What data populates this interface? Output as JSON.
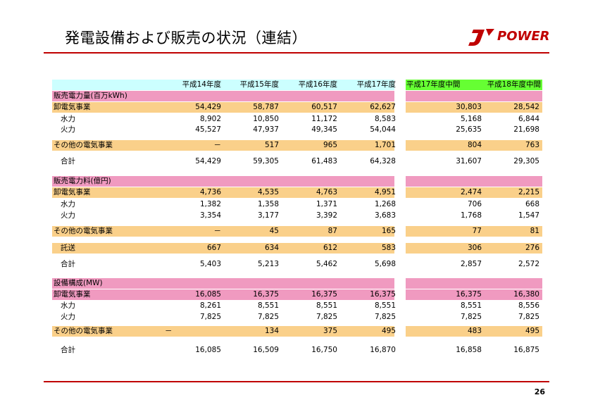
{
  "page": {
    "title": "発電設備および販売の状況（連結）",
    "logo_text": "POWER",
    "page_number": "26",
    "accent_color": "#c00000"
  },
  "header": {
    "columns": [
      "平成14年度",
      "平成15年度",
      "平成16年度",
      "平成17年度",
      "平成17年度中間",
      "平成18年度中間"
    ]
  },
  "sales_volume": {
    "title": "販売電力量(百万kWh)",
    "wholesale": {
      "label": "卸電気事業",
      "values": [
        "54,429",
        "58,787",
        "60,517",
        "62,627",
        "30,803",
        "28,542"
      ]
    },
    "hydro": {
      "label": "水力",
      "values": [
        "8,902",
        "10,850",
        "11,172",
        "8,583",
        "5,168",
        "6,844"
      ]
    },
    "thermal": {
      "label": "火力",
      "values": [
        "45,527",
        "47,937",
        "49,345",
        "54,044",
        "25,635",
        "21,698"
      ]
    },
    "other": {
      "label": "その他の電気事業",
      "values": [
        "－",
        "517",
        "965",
        "1,701",
        "804",
        "763"
      ]
    },
    "total": {
      "label": "合計",
      "values": [
        "54,429",
        "59,305",
        "61,483",
        "64,328",
        "31,607",
        "29,305"
      ]
    }
  },
  "sales_revenue": {
    "title": "販売電力料(億円)",
    "wholesale": {
      "label": "卸電気事業",
      "values": [
        "4,736",
        "4,535",
        "4,763",
        "4,951",
        "2,474",
        "2,215"
      ]
    },
    "hydro": {
      "label": "水力",
      "values": [
        "1,382",
        "1,358",
        "1,371",
        "1,268",
        "706",
        "668"
      ]
    },
    "thermal": {
      "label": "火力",
      "values": [
        "3,354",
        "3,177",
        "3,392",
        "3,683",
        "1,768",
        "1,547"
      ]
    },
    "other": {
      "label": "その他の電気事業",
      "values": [
        "－",
        "45",
        "87",
        "165",
        "77",
        "81"
      ]
    },
    "wheeling": {
      "label": "託送",
      "values": [
        "667",
        "634",
        "612",
        "583",
        "306",
        "276"
      ]
    },
    "total": {
      "label": "合計",
      "values": [
        "5,403",
        "5,213",
        "5,462",
        "5,698",
        "2,857",
        "2,572"
      ]
    }
  },
  "capacity": {
    "title": "設備構成(MW)",
    "wholesale": {
      "label": "卸電気事業",
      "values": [
        "16,085",
        "16,375",
        "16,375",
        "16,375",
        "16,375",
        "16,380"
      ]
    },
    "hydro": {
      "label": "水力",
      "values": [
        "8,261",
        "8,551",
        "8,551",
        "8,551",
        "8,551",
        "8,556"
      ]
    },
    "thermal": {
      "label": "火力",
      "values": [
        "7,825",
        "7,825",
        "7,825",
        "7,825",
        "7,825",
        "7,825"
      ]
    },
    "other": {
      "label": "その他の電気事業",
      "values": [
        "－",
        "134",
        "375",
        "495",
        "483",
        "495"
      ]
    },
    "total": {
      "label": "合計",
      "values": [
        "16,085",
        "16,509",
        "16,750",
        "16,870",
        "16,858",
        "16,875"
      ]
    }
  }
}
